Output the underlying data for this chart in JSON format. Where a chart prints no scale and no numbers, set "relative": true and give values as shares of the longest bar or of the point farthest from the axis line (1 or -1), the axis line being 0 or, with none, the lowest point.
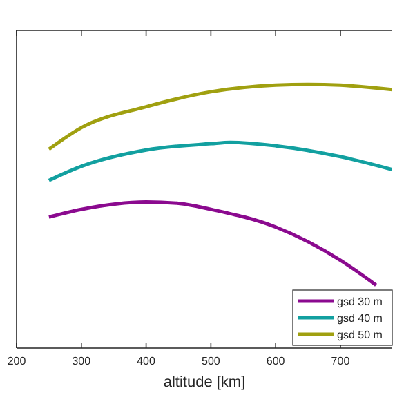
{
  "chart_data": {
    "type": "line",
    "xlabel": "altitude [km]",
    "relative": true,
    "xlim": [
      200,
      780
    ],
    "xticks": [
      200,
      300,
      400,
      500,
      600,
      700
    ],
    "legend": "bottom right",
    "grid": false,
    "line_style": "solid",
    "series": [
      {
        "name": "gsd 30 m",
        "color": "#8b0a8f",
        "x": [
          250,
          300,
          400,
          450,
          500,
          600,
          700,
          755
        ],
        "values": [
          0.497,
          0.526,
          0.554,
          0.549,
          0.526,
          0.459,
          0.333,
          0.239
        ]
      },
      {
        "name": "gsd 40 m",
        "color": "#12a0a0",
        "x": [
          250,
          300,
          400,
          500,
          530,
          600,
          700,
          780
        ],
        "values": [
          0.636,
          0.689,
          0.751,
          0.775,
          0.78,
          0.767,
          0.726,
          0.677
        ]
      },
      {
        "name": "gsd 50 m",
        "color": "#a0a010",
        "x": [
          250,
          300,
          400,
          500,
          600,
          650,
          700,
          780
        ],
        "values": [
          0.754,
          0.836,
          0.915,
          0.972,
          0.997,
          1.0,
          0.997,
          0.98
        ]
      }
    ]
  }
}
